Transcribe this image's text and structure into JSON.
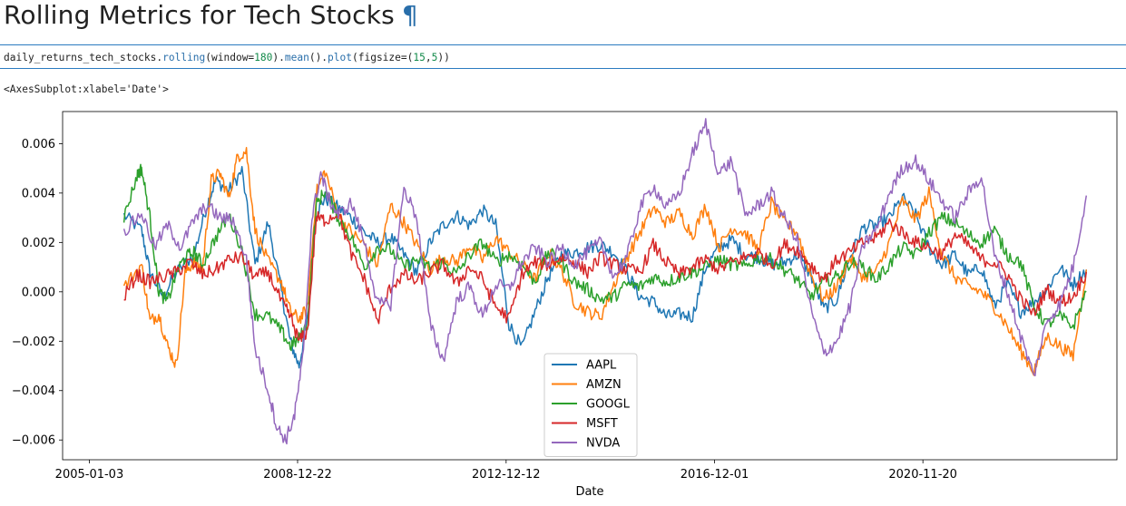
{
  "heading": {
    "title": "Rolling Metrics for Tech Stocks",
    "anchor": "¶"
  },
  "code_cell": {
    "parts": [
      {
        "t": "daily_returns_tech_stocks.",
        "c": "plain"
      },
      {
        "t": "rolling",
        "c": "nm"
      },
      {
        "t": "(window=",
        "c": "plain"
      },
      {
        "t": "180",
        "c": "num"
      },
      {
        "t": ").",
        "c": "plain"
      },
      {
        "t": "mean",
        "c": "nm"
      },
      {
        "t": "().",
        "c": "plain"
      },
      {
        "t": "plot",
        "c": "nm"
      },
      {
        "t": "(figsize=(",
        "c": "plain"
      },
      {
        "t": "15",
        "c": "num"
      },
      {
        "t": ",",
        "c": "plain"
      },
      {
        "t": "5",
        "c": "num"
      },
      {
        "t": "))",
        "c": "plain"
      }
    ]
  },
  "output_text": "<AxesSubplot:xlabel='Date'>",
  "chart_data": {
    "type": "line",
    "xlabel": "Date",
    "ylabel": "",
    "xlim": [
      "2004-07-01",
      "2024-08-01"
    ],
    "ylim": [
      -0.0068,
      0.0073
    ],
    "xticks": [
      "2005-01-03",
      "2008-12-22",
      "2012-12-12",
      "2016-12-01",
      "2020-11-20"
    ],
    "yticks": [
      -0.006,
      -0.004,
      -0.002,
      0.0,
      0.002,
      0.004,
      0.006
    ],
    "ytick_labels": [
      "−0.006",
      "−0.004",
      "−0.002",
      "0.000",
      "0.002",
      "0.004",
      "0.006"
    ],
    "grid": false,
    "legend_position": "lower center",
    "series": [
      {
        "name": "AAPL",
        "color": "#1f77b4",
        "x": [
          "2005-09-01",
          "2006-01-01",
          "2006-03-01",
          "2006-06-01",
          "2006-09-01",
          "2007-01-01",
          "2007-04-01",
          "2007-06-01",
          "2007-09-01",
          "2007-12-01",
          "2008-03-01",
          "2008-06-01",
          "2008-09-01",
          "2008-11-01",
          "2009-01-01",
          "2009-03-01",
          "2009-05-01",
          "2009-07-01",
          "2009-10-01",
          "2010-01-01",
          "2010-04-01",
          "2010-07-01",
          "2010-10-01",
          "2011-01-01",
          "2011-04-01",
          "2011-07-01",
          "2011-10-01",
          "2012-01-01",
          "2012-04-01",
          "2012-07-01",
          "2012-10-01",
          "2013-01-01",
          "2013-04-01",
          "2013-07-01",
          "2013-10-01",
          "2014-01-01",
          "2014-04-01",
          "2014-07-01",
          "2014-10-01",
          "2015-01-01",
          "2015-04-01",
          "2015-07-01",
          "2015-10-01",
          "2016-01-01",
          "2016-04-01",
          "2016-07-01",
          "2016-10-01",
          "2017-01-01",
          "2017-04-01",
          "2017-07-01",
          "2017-10-01",
          "2018-01-01",
          "2018-04-01",
          "2018-07-01",
          "2018-10-01",
          "2019-01-01",
          "2019-04-01",
          "2019-07-01",
          "2019-10-01",
          "2020-01-01",
          "2020-04-01",
          "2020-07-01",
          "2020-10-01",
          "2021-01-01",
          "2021-04-01",
          "2021-07-01",
          "2021-10-01",
          "2022-01-01",
          "2022-04-01",
          "2022-07-01",
          "2022-10-01",
          "2023-01-01",
          "2023-04-01",
          "2023-07-01",
          "2023-10-01",
          "2024-01-01"
        ],
        "y": [
          0.0031,
          0.0025,
          0.0008,
          -0.0002,
          0.0008,
          0.0015,
          0.0035,
          0.0045,
          0.0041,
          0.0049,
          0.0011,
          0.0028,
          0.0,
          -0.002,
          -0.003,
          -0.0011,
          0.0032,
          0.0038,
          0.0034,
          0.003,
          0.0024,
          0.002,
          0.0022,
          0.0015,
          0.0008,
          0.002,
          0.0027,
          0.0031,
          0.0027,
          0.0033,
          0.0027,
          -0.0013,
          -0.0023,
          -0.0008,
          0.0006,
          0.0015,
          0.0016,
          0.0018,
          0.0019,
          0.0016,
          0.0008,
          -0.0002,
          -0.0004,
          -0.001,
          -0.0009,
          -0.001,
          0.001,
          0.0018,
          0.0021,
          0.0015,
          0.0014,
          0.0011,
          0.0012,
          0.0015,
          0.0007,
          -0.0007,
          -0.0003,
          0.0014,
          0.0026,
          0.0027,
          0.003,
          0.0038,
          0.0031,
          0.0018,
          0.0011,
          0.0015,
          0.0007,
          0.001,
          -0.0006,
          0.0003,
          -0.0008,
          -0.0004,
          0.0001,
          0.001,
          0.0003,
          0.0009
        ]
      },
      {
        "name": "AMZN",
        "color": "#ff7f0e",
        "x": [
          "2005-09-01",
          "2006-01-01",
          "2006-03-01",
          "2006-05-01",
          "2006-07-01",
          "2006-09-01",
          "2006-11-01",
          "2007-01-01",
          "2007-03-01",
          "2007-05-01",
          "2007-07-01",
          "2007-09-01",
          "2007-11-01",
          "2008-01-01",
          "2008-03-01",
          "2008-06-01",
          "2008-09-01",
          "2008-11-01",
          "2009-01-01",
          "2009-03-01",
          "2009-05-01",
          "2009-07-01",
          "2009-10-01",
          "2010-01-01",
          "2010-04-01",
          "2010-07-01",
          "2010-10-01",
          "2011-01-01",
          "2011-04-01",
          "2011-07-01",
          "2011-10-01",
          "2012-01-01",
          "2012-04-01",
          "2012-07-01",
          "2012-10-01",
          "2013-01-01",
          "2013-04-01",
          "2013-07-01",
          "2013-10-01",
          "2014-01-01",
          "2014-04-01",
          "2014-07-01",
          "2014-10-01",
          "2015-01-01",
          "2015-04-01",
          "2015-07-01",
          "2015-10-01",
          "2016-01-01",
          "2016-04-01",
          "2016-07-01",
          "2016-10-01",
          "2017-01-01",
          "2017-04-01",
          "2017-07-01",
          "2017-10-01",
          "2018-01-01",
          "2018-04-01",
          "2018-07-01",
          "2018-10-01",
          "2019-01-01",
          "2019-04-01",
          "2019-07-01",
          "2019-10-01",
          "2020-01-01",
          "2020-04-01",
          "2020-07-01",
          "2020-10-01",
          "2021-01-01",
          "2021-04-01",
          "2021-07-01",
          "2021-10-01",
          "2022-01-01",
          "2022-04-01",
          "2022-07-01",
          "2022-10-01",
          "2023-01-01",
          "2023-04-01",
          "2023-07-01",
          "2023-10-01",
          "2024-01-01"
        ],
        "y": [
          0.0002,
          0.0011,
          -0.0012,
          -0.0009,
          -0.0022,
          -0.003,
          0.0008,
          0.0012,
          0.0009,
          0.0045,
          0.0048,
          0.0038,
          0.0055,
          0.0057,
          0.0025,
          0.0012,
          0.0004,
          -0.0008,
          -0.0011,
          -0.0007,
          0.004,
          0.0049,
          0.0031,
          0.0024,
          0.0019,
          0.0011,
          0.0035,
          0.0028,
          0.0019,
          0.0009,
          0.0014,
          0.0012,
          0.0019,
          0.0013,
          0.0022,
          0.0016,
          0.0011,
          0.0005,
          0.0016,
          0.0009,
          -0.0004,
          -0.0008,
          -0.001,
          0.0003,
          0.0014,
          0.0024,
          0.0034,
          0.0028,
          0.0032,
          0.0023,
          0.0035,
          0.0018,
          0.0026,
          0.0024,
          0.0017,
          0.0036,
          0.0028,
          0.0024,
          0.0007,
          -0.0003,
          0.0002,
          0.0014,
          0.0006,
          0.0008,
          0.002,
          0.0037,
          0.0029,
          0.004,
          0.0015,
          0.0006,
          0.0002,
          0.0,
          -0.0006,
          -0.0014,
          -0.0024,
          -0.0032,
          -0.0018,
          -0.0022,
          -0.0026,
          0.0009
        ]
      },
      {
        "name": "GOOGL",
        "color": "#2ca02c",
        "x": [
          "2005-09-01",
          "2005-12-01",
          "2006-01-01",
          "2006-03-01",
          "2006-05-01",
          "2006-07-01",
          "2006-09-01",
          "2006-11-01",
          "2007-01-01",
          "2007-03-01",
          "2007-06-01",
          "2007-09-01",
          "2007-12-01",
          "2008-03-01",
          "2008-06-01",
          "2008-09-01",
          "2008-11-01",
          "2009-01-01",
          "2009-03-01",
          "2009-05-01",
          "2009-07-01",
          "2009-10-01",
          "2010-01-01",
          "2010-04-01",
          "2010-07-01",
          "2010-10-01",
          "2011-01-01",
          "2011-04-01",
          "2011-07-01",
          "2011-10-01",
          "2012-01-01",
          "2012-04-01",
          "2012-07-01",
          "2012-10-01",
          "2013-01-01",
          "2013-04-01",
          "2013-07-01",
          "2013-10-01",
          "2014-01-01",
          "2014-04-01",
          "2014-07-01",
          "2014-10-01",
          "2015-01-01",
          "2015-04-01",
          "2015-07-01",
          "2015-10-01",
          "2016-01-01",
          "2016-04-01",
          "2016-07-01",
          "2016-10-01",
          "2017-01-01",
          "2017-04-01",
          "2017-07-01",
          "2017-10-01",
          "2018-01-01",
          "2018-04-01",
          "2018-07-01",
          "2018-10-01",
          "2019-01-01",
          "2019-04-01",
          "2019-07-01",
          "2019-10-01",
          "2020-01-01",
          "2020-04-01",
          "2020-07-01",
          "2020-10-01",
          "2021-01-01",
          "2021-04-01",
          "2021-07-01",
          "2021-10-01",
          "2022-01-01",
          "2022-04-01",
          "2022-07-01",
          "2022-10-01",
          "2023-01-01",
          "2023-04-01",
          "2023-07-01",
          "2023-10-01",
          "2024-01-01"
        ],
        "y": [
          0.003,
          0.0047,
          0.005,
          0.003,
          0.0,
          -0.0004,
          0.0008,
          0.0014,
          0.0016,
          0.0011,
          0.0022,
          0.0031,
          0.0017,
          -0.0009,
          -0.001,
          -0.0016,
          -0.0022,
          -0.0019,
          -0.0013,
          0.0035,
          0.0041,
          0.003,
          0.0022,
          0.001,
          0.0018,
          0.0017,
          0.001,
          0.0013,
          0.001,
          0.0012,
          0.0007,
          0.0015,
          0.002,
          0.0012,
          0.0015,
          0.0011,
          0.0004,
          0.0016,
          0.0012,
          0.0004,
          0.0001,
          -0.0003,
          -0.0002,
          0.0003,
          0.0002,
          0.0006,
          0.0004,
          0.0006,
          0.0008,
          0.001,
          0.0013,
          0.0011,
          0.001,
          0.0014,
          0.0013,
          0.0009,
          0.0005,
          -0.0002,
          0.0004,
          0.0006,
          0.0012,
          0.001,
          0.0005,
          0.0011,
          0.0018,
          0.0015,
          0.0024,
          0.003,
          0.0028,
          0.0023,
          0.002,
          0.0025,
          0.0015,
          0.0012,
          -0.0006,
          -0.0013,
          -0.001,
          -0.0014,
          0.0
        ]
      },
      {
        "name": "MSFT",
        "color": "#d62728",
        "x": [
          "2005-09-01",
          "2005-12-01",
          "2006-03-01",
          "2006-06-01",
          "2006-09-01",
          "2006-12-01",
          "2007-03-01",
          "2007-06-01",
          "2007-09-01",
          "2007-12-01",
          "2008-03-01",
          "2008-06-01",
          "2008-09-01",
          "2008-11-01",
          "2009-01-01",
          "2009-03-01",
          "2009-05-01",
          "2009-07-01",
          "2009-10-01",
          "2010-01-01",
          "2010-04-01",
          "2010-07-01",
          "2010-10-01",
          "2011-01-01",
          "2011-04-01",
          "2011-07-01",
          "2011-10-01",
          "2012-01-01",
          "2012-04-01",
          "2012-07-01",
          "2012-10-01",
          "2013-01-01",
          "2013-04-01",
          "2013-07-01",
          "2013-10-01",
          "2014-01-01",
          "2014-04-01",
          "2014-07-01",
          "2014-10-01",
          "2015-01-01",
          "2015-04-01",
          "2015-07-01",
          "2015-10-01",
          "2016-01-01",
          "2016-04-01",
          "2016-07-01",
          "2016-10-01",
          "2017-01-01",
          "2017-04-01",
          "2017-07-01",
          "2017-10-01",
          "2018-01-01",
          "2018-04-01",
          "2018-07-01",
          "2018-10-01",
          "2019-01-01",
          "2019-04-01",
          "2019-07-01",
          "2019-10-01",
          "2020-01-01",
          "2020-04-01",
          "2020-07-01",
          "2020-10-01",
          "2021-01-01",
          "2021-04-01",
          "2021-07-01",
          "2021-10-01",
          "2022-01-01",
          "2022-04-01",
          "2022-07-01",
          "2022-10-01",
          "2023-01-01",
          "2023-04-01",
          "2023-07-01",
          "2023-10-01",
          "2024-01-01"
        ],
        "y": [
          -0.0002,
          0.0007,
          0.0004,
          0.0006,
          0.0008,
          0.0012,
          0.0007,
          0.0009,
          0.0013,
          0.0014,
          0.0006,
          0.0008,
          -0.0004,
          -0.001,
          -0.002,
          -0.0016,
          0.003,
          0.0029,
          0.0032,
          0.0015,
          0.0005,
          -0.0012,
          0.0002,
          0.0007,
          0.0004,
          0.0008,
          0.0011,
          0.0003,
          0.001,
          0.0005,
          -0.0006,
          -0.0011,
          0.0007,
          0.0012,
          0.0011,
          0.0014,
          0.0012,
          0.0008,
          0.0014,
          0.0011,
          0.0009,
          0.0008,
          0.0019,
          0.0012,
          0.0007,
          0.001,
          0.0013,
          0.0009,
          0.0012,
          0.0014,
          0.0016,
          0.0011,
          0.0019,
          0.0017,
          0.0011,
          0.0005,
          0.0013,
          0.0016,
          0.002,
          0.0022,
          0.0028,
          0.0024,
          0.002,
          0.0018,
          0.0015,
          0.0023,
          0.0019,
          0.0013,
          0.0012,
          0.0007,
          -0.0003,
          -0.0009,
          0.0001,
          -0.0004,
          -0.0002,
          0.0008
        ]
      },
      {
        "name": "NVDA",
        "color": "#9467bd",
        "x": [
          "2005-09-01",
          "2006-01-01",
          "2006-04-01",
          "2006-07-01",
          "2006-10-01",
          "2007-01-01",
          "2007-04-01",
          "2007-07-01",
          "2007-10-01",
          "2008-01-01",
          "2008-03-01",
          "2008-06-01",
          "2008-08-01",
          "2008-10-01",
          "2008-12-01",
          "2009-02-01",
          "2009-04-01",
          "2009-06-01",
          "2009-08-01",
          "2009-10-01",
          "2010-01-01",
          "2010-04-01",
          "2010-07-01",
          "2010-10-01",
          "2011-01-01",
          "2011-04-01",
          "2011-07-01",
          "2011-10-01",
          "2012-01-01",
          "2012-04-01",
          "2012-07-01",
          "2012-10-01",
          "2013-01-01",
          "2013-04-01",
          "2013-07-01",
          "2013-10-01",
          "2014-01-01",
          "2014-04-01",
          "2014-07-01",
          "2014-10-01",
          "2015-01-01",
          "2015-04-01",
          "2015-07-01",
          "2015-10-01",
          "2016-01-01",
          "2016-04-01",
          "2016-07-01",
          "2016-10-01",
          "2017-01-01",
          "2017-04-01",
          "2017-07-01",
          "2017-10-01",
          "2018-01-01",
          "2018-04-01",
          "2018-07-01",
          "2018-10-01",
          "2019-01-01",
          "2019-04-01",
          "2019-07-01",
          "2019-10-01",
          "2020-01-01",
          "2020-04-01",
          "2020-07-01",
          "2020-10-01",
          "2021-01-01",
          "2021-04-01",
          "2021-07-01",
          "2021-10-01",
          "2022-01-01",
          "2022-04-01",
          "2022-07-01",
          "2022-10-01",
          "2023-01-01",
          "2023-04-01",
          "2023-07-01",
          "2023-10-01",
          "2024-01-01"
        ],
        "y": [
          0.0024,
          0.0032,
          0.0018,
          0.0027,
          0.0018,
          0.0029,
          0.0035,
          0.003,
          0.0029,
          0.0013,
          -0.0023,
          -0.004,
          -0.0055,
          -0.006,
          -0.005,
          -0.0025,
          0.003,
          0.0048,
          0.0037,
          0.0031,
          0.0036,
          0.002,
          -0.0005,
          -0.0005,
          0.0042,
          0.003,
          -0.0013,
          -0.0028,
          -0.0004,
          0.0002,
          -0.001,
          0.0003,
          0.0001,
          0.0012,
          0.0018,
          0.0012,
          0.0018,
          0.0011,
          0.0016,
          0.002,
          0.0006,
          0.0014,
          0.0034,
          0.0043,
          0.0034,
          0.004,
          0.0056,
          0.0068,
          0.0048,
          0.0053,
          0.0031,
          0.0035,
          0.004,
          0.003,
          0.0021,
          -0.0007,
          -0.0025,
          -0.002,
          -0.0006,
          0.0019,
          0.0025,
          0.004,
          0.005,
          0.0053,
          0.0045,
          0.0037,
          0.003,
          0.004,
          0.0047,
          0.0015,
          0.0,
          -0.0018,
          -0.0034,
          -0.0012,
          -0.0005,
          0.001,
          0.0039
        ]
      }
    ]
  }
}
